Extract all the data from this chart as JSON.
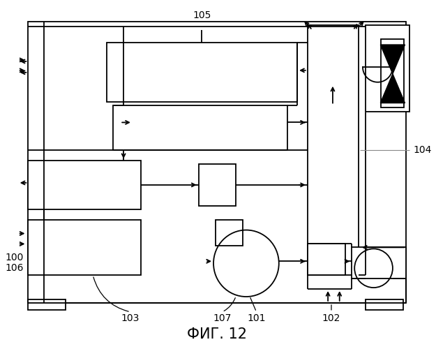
{
  "bg": "#ffffff",
  "lc": "#000000",
  "lw": 1.3,
  "title": "ФИГ. 12",
  "title_fs": 15,
  "label_fs": 10
}
